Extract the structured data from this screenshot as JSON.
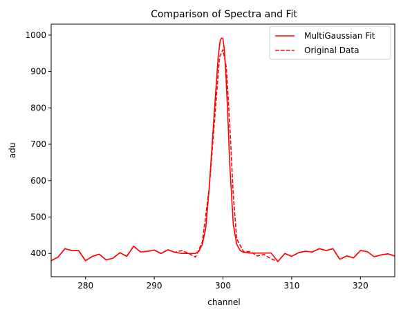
{
  "chart_data": {
    "type": "line",
    "title": "Comparison of Spectra and Fit",
    "xlabel": "channel",
    "ylabel": "adu",
    "xlim": [
      275,
      325
    ],
    "ylim": [
      336,
      1030
    ],
    "xticks": [
      280,
      290,
      300,
      310,
      320
    ],
    "yticks": [
      400,
      500,
      600,
      700,
      800,
      900,
      1000
    ],
    "grid": false,
    "legend_position": "top-right",
    "series": [
      {
        "name": "MultiGaussian Fit",
        "style": "solid",
        "color": "#ff0000",
        "x": [
          275,
          276,
          277,
          278,
          279,
          280,
          281,
          282,
          283,
          284,
          285,
          286,
          287,
          288,
          289,
          290,
          291,
          292,
          293,
          294,
          295,
          296,
          296.5,
          297,
          297.5,
          298,
          298.5,
          299,
          299.3,
          299.6,
          299.8,
          300,
          300.2,
          300.4,
          300.7,
          301,
          301.5,
          302,
          302.5,
          303,
          303.5,
          304,
          305,
          306,
          307,
          308,
          309,
          310,
          311,
          312,
          313,
          314,
          315,
          316,
          317,
          318,
          319,
          320,
          321,
          322,
          323,
          324,
          325
        ],
        "y": [
          380,
          390,
          413,
          408,
          408,
          380,
          392,
          398,
          382,
          387,
          402,
          392,
          420,
          404,
          406,
          409,
          400,
          410,
          403,
          400,
          400,
          400,
          406,
          425,
          470,
          580,
          720,
          860,
          940,
          985,
          992,
          990,
          960,
          900,
          780,
          640,
          480,
          425,
          408,
          403,
          402,
          401,
          401,
          401,
          401,
          378,
          400,
          392,
          402,
          406,
          404,
          413,
          408,
          413,
          384,
          393,
          388,
          408,
          405,
          391,
          396,
          399,
          393
        ]
      },
      {
        "name": "Original Data",
        "style": "dashed",
        "color": "#ff0000",
        "x": [
          275,
          276,
          277,
          278,
          279,
          280,
          281,
          282,
          283,
          284,
          285,
          286,
          287,
          288,
          289,
          290,
          291,
          292,
          293,
          294,
          295,
          296,
          297,
          298,
          299,
          299.5,
          300,
          300.5,
          301,
          301.5,
          302,
          303,
          304,
          305,
          306,
          307,
          308,
          309,
          310,
          311,
          312,
          313,
          314,
          315,
          316,
          317,
          318,
          319,
          320,
          321,
          322,
          323,
          324,
          325
        ],
        "y": [
          380,
          390,
          413,
          408,
          408,
          380,
          392,
          398,
          382,
          387,
          402,
          392,
          420,
          404,
          406,
          409,
          400,
          410,
          403,
          408,
          400,
          390,
          432,
          580,
          820,
          940,
          960,
          910,
          750,
          560,
          440,
          405,
          405,
          393,
          397,
          385,
          378,
          400,
          392,
          402,
          406,
          404,
          413,
          408,
          413,
          384,
          393,
          388,
          408,
          405,
          391,
          396,
          399,
          393
        ]
      }
    ]
  }
}
